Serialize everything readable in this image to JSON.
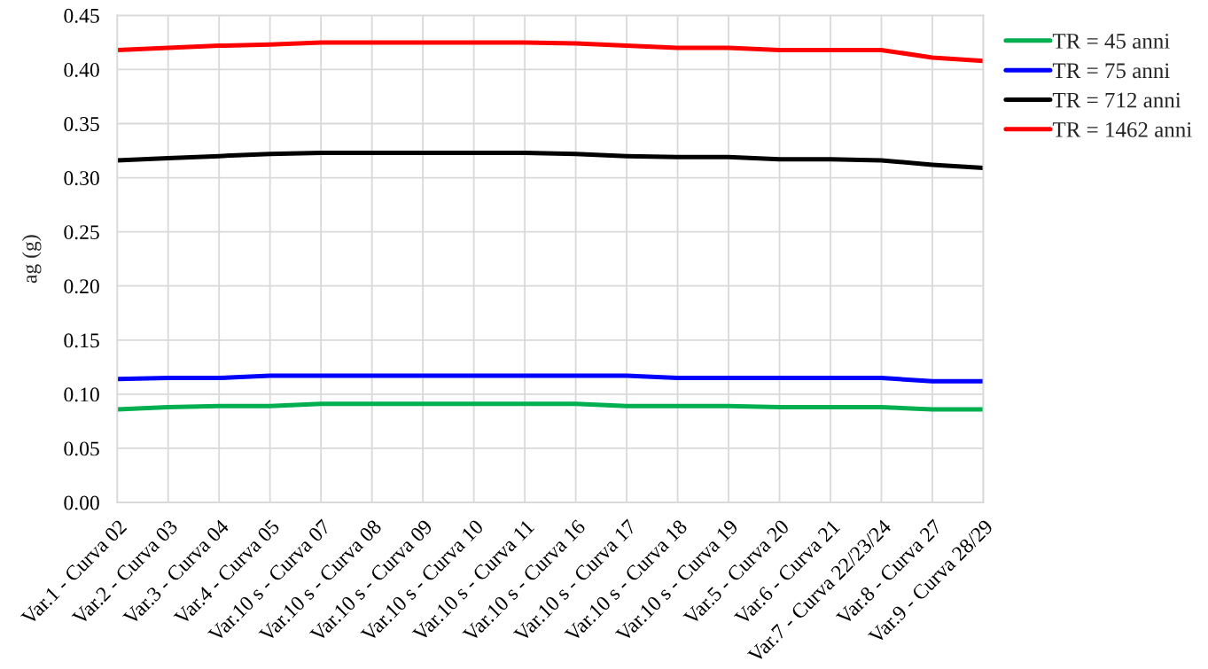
{
  "chart_data": {
    "type": "line",
    "ylabel": "ag (g)",
    "categories": [
      "Var.1 - Curva 02",
      "Var.2 - Curva 03",
      "Var.3 - Curva 04",
      "Var.4 - Curva 05",
      "Var.10 s - Curva 07",
      "Var.10 s - Curva 08",
      "Var.10 s - Curva 09",
      "Var.10 s - Curva 10",
      "Var.10 s - Curva 11",
      "Var.10 s - Curva 16",
      "Var.10 s - Curva 17",
      "Var.10 s - Curva 18",
      "Var.10 s - Curva 19",
      "Var.5 - Curva 20",
      "Var.6 - Curva 21",
      "Var.7 - Curva 22/23/24",
      "Var.8 - Curva 27",
      "Var.9 - Curva 28/29"
    ],
    "series": [
      {
        "name": "TR = 45 anni",
        "color": "#00b050",
        "values": [
          0.086,
          0.088,
          0.089,
          0.089,
          0.091,
          0.091,
          0.091,
          0.091,
          0.091,
          0.091,
          0.089,
          0.089,
          0.089,
          0.088,
          0.088,
          0.088,
          0.086,
          0.086
        ]
      },
      {
        "name": "TR = 75 anni",
        "color": "#0000ff",
        "values": [
          0.114,
          0.115,
          0.115,
          0.117,
          0.117,
          0.117,
          0.117,
          0.117,
          0.117,
          0.117,
          0.117,
          0.115,
          0.115,
          0.115,
          0.115,
          0.115,
          0.112,
          0.112
        ]
      },
      {
        "name": "TR = 712 anni",
        "color": "#000000",
        "values": [
          0.316,
          0.318,
          0.32,
          0.322,
          0.323,
          0.323,
          0.323,
          0.323,
          0.323,
          0.322,
          0.32,
          0.319,
          0.319,
          0.317,
          0.317,
          0.316,
          0.312,
          0.309
        ]
      },
      {
        "name": "TR = 1462 anni",
        "color": "#ff0000",
        "values": [
          0.418,
          0.42,
          0.422,
          0.423,
          0.425,
          0.425,
          0.425,
          0.425,
          0.425,
          0.424,
          0.422,
          0.42,
          0.42,
          0.418,
          0.418,
          0.418,
          0.411,
          0.408
        ]
      }
    ],
    "ylim": [
      0,
      0.45
    ],
    "yticks": [
      {
        "value": 0,
        "label": "0.00"
      },
      {
        "value": 0.05,
        "label": "0.05"
      },
      {
        "value": 0.1,
        "label": "0.10"
      },
      {
        "value": 0.15,
        "label": "0.15"
      },
      {
        "value": 0.2,
        "label": "0.20"
      },
      {
        "value": 0.25,
        "label": "0.25"
      },
      {
        "value": 0.3,
        "label": "0.30"
      },
      {
        "value": 0.35,
        "label": "0.35"
      },
      {
        "value": 0.4,
        "label": "0.40"
      },
      {
        "value": 0.45,
        "label": "0.45"
      }
    ],
    "grid": true,
    "legend": "top right",
    "line_style": "solid"
  }
}
